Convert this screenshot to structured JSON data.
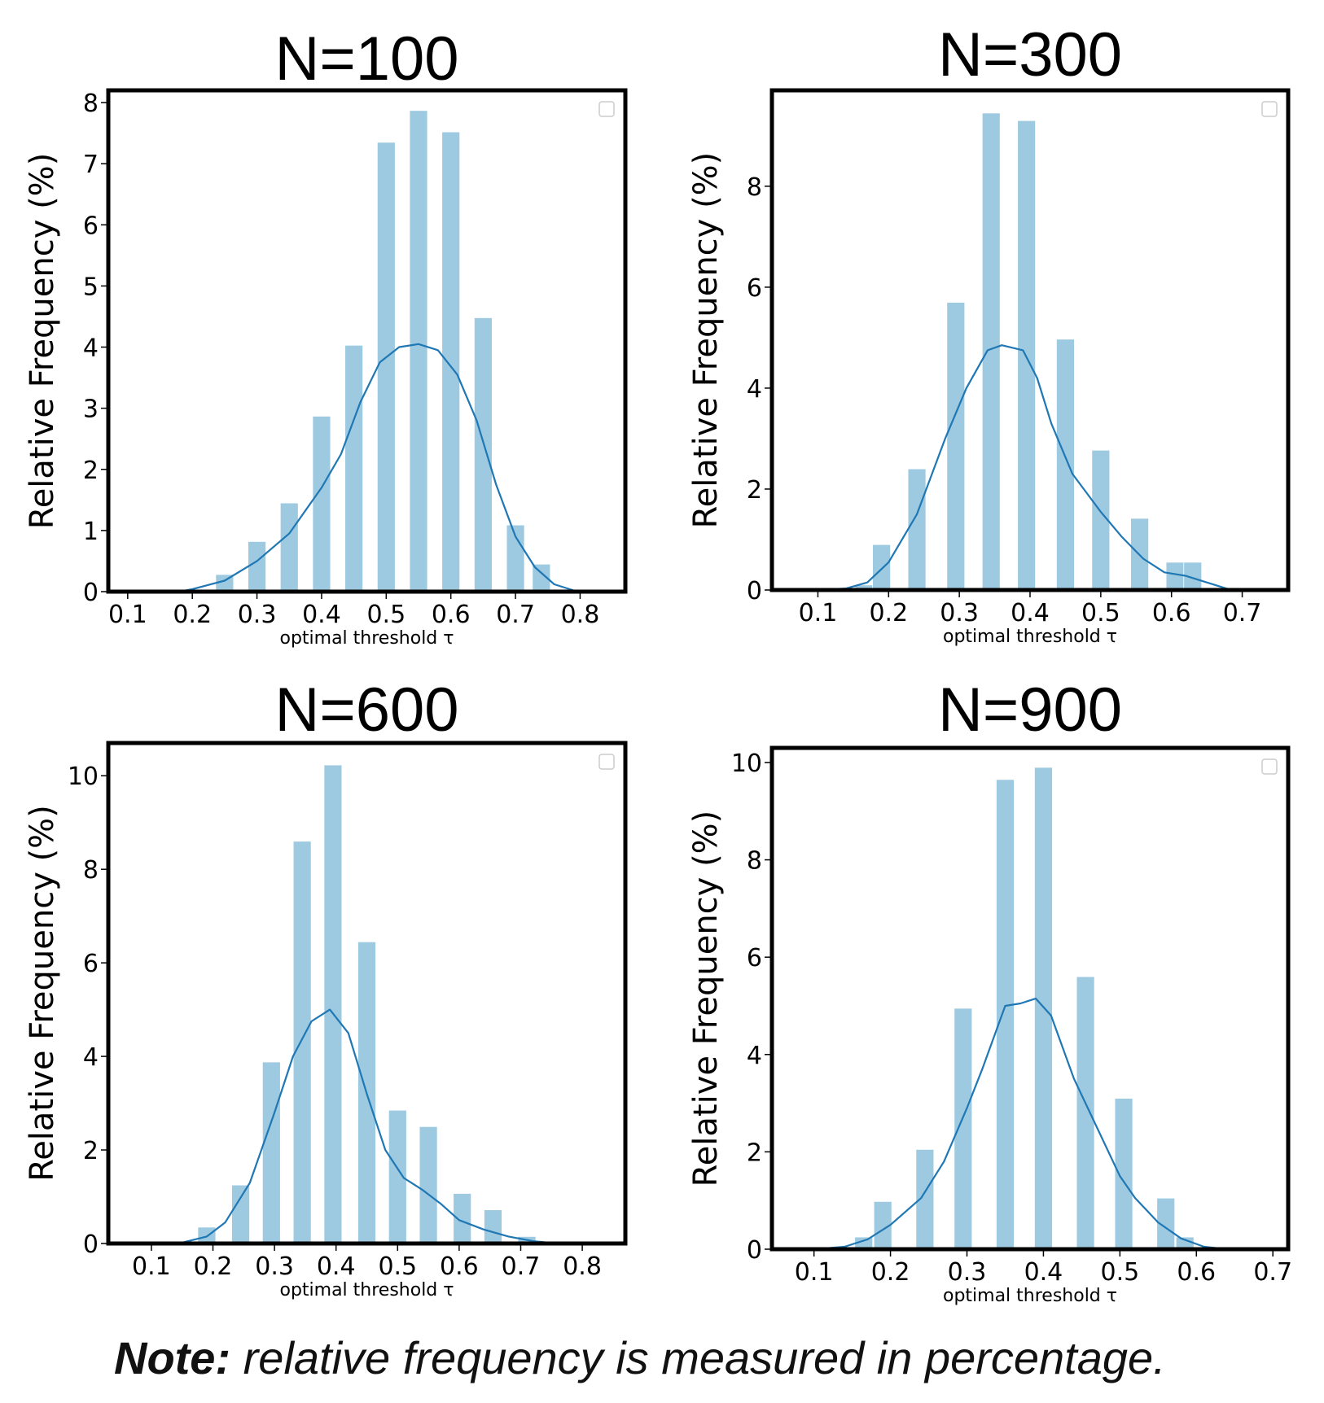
{
  "note": {
    "lead": "Note:",
    "text": " relative frequency is measured in percentage."
  },
  "chart_data": [
    {
      "type": "bar",
      "title": "N=100",
      "xlabel": "optimal threshold τ",
      "ylabel": "Relative Frequency (%)",
      "xlim": [
        0.07,
        0.87
      ],
      "ylim": [
        0,
        8.2
      ],
      "xticks": [
        "0.1",
        "0.2",
        "0.3",
        "0.4",
        "0.5",
        "0.6",
        "0.7",
        "0.8"
      ],
      "yticks": [
        "0",
        "1",
        "2",
        "3",
        "4",
        "5",
        "6",
        "7",
        "8"
      ],
      "grid": false,
      "legend": "top-right (empty)",
      "bar_color": "#9ecae1",
      "line_color": "#1f77b4",
      "bars": [
        {
          "x": 0.25,
          "y": 0.28
        },
        {
          "x": 0.3,
          "y": 0.82
        },
        {
          "x": 0.35,
          "y": 1.45
        },
        {
          "x": 0.4,
          "y": 2.87
        },
        {
          "x": 0.45,
          "y": 4.03
        },
        {
          "x": 0.5,
          "y": 7.35
        },
        {
          "x": 0.55,
          "y": 7.87
        },
        {
          "x": 0.6,
          "y": 7.52
        },
        {
          "x": 0.65,
          "y": 4.48
        },
        {
          "x": 0.7,
          "y": 1.09
        },
        {
          "x": 0.74,
          "y": 0.45
        }
      ],
      "kde": {
        "x": [
          0.1,
          0.15,
          0.18,
          0.2,
          0.25,
          0.3,
          0.35,
          0.4,
          0.43,
          0.46,
          0.49,
          0.52,
          0.55,
          0.58,
          0.61,
          0.64,
          0.67,
          0.7,
          0.73,
          0.76,
          0.79,
          0.8
        ],
        "y": [
          0.0,
          0.0,
          0.0,
          0.04,
          0.18,
          0.5,
          0.95,
          1.7,
          2.25,
          3.1,
          3.75,
          4.0,
          4.05,
          3.95,
          3.55,
          2.8,
          1.75,
          0.9,
          0.4,
          0.12,
          0.02,
          0.0
        ]
      }
    },
    {
      "type": "bar",
      "title": "N=300",
      "xlabel": "optimal threshold τ",
      "ylabel": "Relative Frequency (%)",
      "xlim": [
        0.035,
        0.765
      ],
      "ylim": [
        0,
        9.9
      ],
      "xticks": [
        "0.1",
        "0.2",
        "0.3",
        "0.4",
        "0.5",
        "0.6",
        "0.7"
      ],
      "yticks": [
        "0",
        "2",
        "4",
        "6",
        "8"
      ],
      "grid": false,
      "legend": "top-right (empty)",
      "bar_color": "#9ecae1",
      "line_color": "#1f77b4",
      "bars": [
        {
          "x": 0.165,
          "y": 0.1
        },
        {
          "x": 0.19,
          "y": 0.9
        },
        {
          "x": 0.24,
          "y": 2.4
        },
        {
          "x": 0.295,
          "y": 5.7
        },
        {
          "x": 0.345,
          "y": 9.45
        },
        {
          "x": 0.395,
          "y": 9.3
        },
        {
          "x": 0.45,
          "y": 4.97
        },
        {
          "x": 0.5,
          "y": 2.77
        },
        {
          "x": 0.555,
          "y": 1.42
        },
        {
          "x": 0.605,
          "y": 0.55
        },
        {
          "x": 0.63,
          "y": 0.55
        }
      ],
      "kde": {
        "x": [
          0.1,
          0.14,
          0.17,
          0.2,
          0.24,
          0.28,
          0.31,
          0.34,
          0.36,
          0.39,
          0.41,
          0.43,
          0.46,
          0.5,
          0.53,
          0.56,
          0.59,
          0.62,
          0.65,
          0.68,
          0.7
        ],
        "y": [
          0.0,
          0.03,
          0.15,
          0.55,
          1.5,
          3.0,
          4.0,
          4.75,
          4.85,
          4.75,
          4.2,
          3.3,
          2.3,
          1.55,
          1.05,
          0.62,
          0.35,
          0.28,
          0.15,
          0.02,
          0.0
        ]
      }
    },
    {
      "type": "bar",
      "title": "N=600",
      "xlabel": "optimal threshold τ",
      "ylabel": "Relative Frequency (%)",
      "xlim": [
        0.03,
        0.87
      ],
      "ylim": [
        0,
        10.7
      ],
      "xticks": [
        "0.1",
        "0.2",
        "0.3",
        "0.4",
        "0.5",
        "0.6",
        "0.7",
        "0.8"
      ],
      "yticks": [
        "0",
        "2",
        "4",
        "6",
        "8",
        "10"
      ],
      "grid": false,
      "legend": "top-right (empty)",
      "bar_color": "#9ecae1",
      "line_color": "#1f77b4",
      "bars": [
        {
          "x": 0.19,
          "y": 0.35
        },
        {
          "x": 0.245,
          "y": 1.25
        },
        {
          "x": 0.295,
          "y": 3.88
        },
        {
          "x": 0.345,
          "y": 8.6
        },
        {
          "x": 0.395,
          "y": 10.23
        },
        {
          "x": 0.45,
          "y": 6.45
        },
        {
          "x": 0.5,
          "y": 2.85
        },
        {
          "x": 0.55,
          "y": 2.5
        },
        {
          "x": 0.605,
          "y": 1.07
        },
        {
          "x": 0.655,
          "y": 0.72
        },
        {
          "x": 0.71,
          "y": 0.15
        }
      ],
      "kde": {
        "x": [
          0.1,
          0.15,
          0.19,
          0.22,
          0.26,
          0.3,
          0.33,
          0.36,
          0.39,
          0.42,
          0.45,
          0.48,
          0.51,
          0.54,
          0.57,
          0.6,
          0.64,
          0.68,
          0.72,
          0.76,
          0.78
        ],
        "y": [
          0.0,
          0.02,
          0.15,
          0.45,
          1.3,
          2.8,
          4.0,
          4.75,
          5.0,
          4.5,
          3.2,
          2.0,
          1.4,
          1.15,
          0.85,
          0.5,
          0.3,
          0.15,
          0.05,
          0.0,
          0.0
        ]
      }
    },
    {
      "type": "bar",
      "title": "N=900",
      "xlabel": "optimal threshold τ",
      "ylabel": "Relative Frequency (%)",
      "xlim": [
        0.045,
        0.72
      ],
      "ylim": [
        0,
        10.3
      ],
      "xticks": [
        "0.1",
        "0.2",
        "0.3",
        "0.4",
        "0.5",
        "0.6",
        "0.7"
      ],
      "yticks": [
        "0",
        "2",
        "4",
        "6",
        "8",
        "10"
      ],
      "grid": false,
      "legend": "top-right (empty)",
      "bar_color": "#9ecae1",
      "line_color": "#1f77b4",
      "bars": [
        {
          "x": 0.165,
          "y": 0.25
        },
        {
          "x": 0.19,
          "y": 0.98
        },
        {
          "x": 0.245,
          "y": 2.05
        },
        {
          "x": 0.295,
          "y": 4.95
        },
        {
          "x": 0.35,
          "y": 9.65
        },
        {
          "x": 0.4,
          "y": 9.9
        },
        {
          "x": 0.455,
          "y": 5.6
        },
        {
          "x": 0.505,
          "y": 3.1
        },
        {
          "x": 0.56,
          "y": 1.05
        },
        {
          "x": 0.585,
          "y": 0.25
        }
      ],
      "kde": {
        "x": [
          0.1,
          0.14,
          0.17,
          0.2,
          0.24,
          0.27,
          0.3,
          0.32,
          0.35,
          0.37,
          0.39,
          0.41,
          0.44,
          0.47,
          0.5,
          0.52,
          0.55,
          0.58,
          0.61,
          0.64
        ],
        "y": [
          0.0,
          0.05,
          0.2,
          0.5,
          1.05,
          1.8,
          2.9,
          3.7,
          5.0,
          5.05,
          5.15,
          4.8,
          3.5,
          2.5,
          1.5,
          1.05,
          0.55,
          0.22,
          0.05,
          0.0
        ]
      }
    }
  ]
}
